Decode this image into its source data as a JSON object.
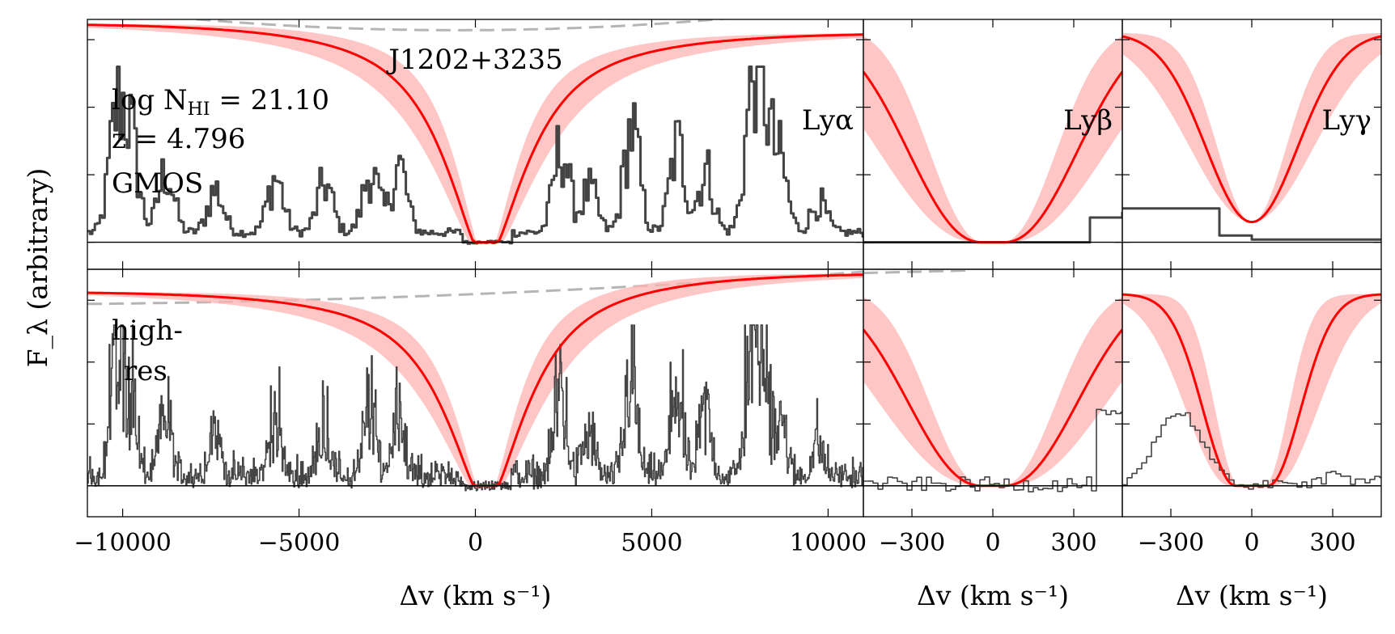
{
  "chart_data": {
    "type": "line",
    "object_label": "J1202+3235",
    "ylabel": "F_λ (arbitrary)",
    "xlabel": "Δv (km s⁻¹)",
    "column_counts": 3,
    "columns": [
      {
        "line": "Lyα",
        "xlim": [
          -11000,
          11000
        ],
        "xticks": [
          -10000,
          -5000,
          0,
          5000,
          10000
        ],
        "xtick_labels": [
          "−10000",
          "−5000",
          "0",
          "5000",
          "10000"
        ]
      },
      {
        "line": "Lyβ",
        "xlim": [
          -480,
          480
        ],
        "xticks": [
          -300,
          0,
          300
        ],
        "xtick_labels": [
          "−300",
          "0",
          "300"
        ]
      },
      {
        "line": "Lyγ",
        "xlim": [
          -480,
          480
        ],
        "xticks": [
          -300,
          0,
          300
        ],
        "xtick_labels": [
          "−300",
          "0",
          "300"
        ]
      }
    ],
    "rows": [
      {
        "spectrum": "GMOS",
        "label_lines": [
          "GMOS"
        ],
        "logN_HI": "21.10",
        "z": "4.796",
        "ylim": [
          -0.2,
          1.65
        ]
      },
      {
        "spectrum": "high-res",
        "label_lines": [
          "high-",
          "res"
        ],
        "ylim": [
          -0.25,
          1.75
        ]
      }
    ],
    "model": {
      "logN_HI": 21.1,
      "z": 4.796,
      "band": "±1σ"
    },
    "legend": "none",
    "grid": false
  },
  "colors": {
    "flux": "#444444",
    "model": "#ff0000",
    "band": "#ffb3b3",
    "continuum": "#b5b5b5"
  }
}
